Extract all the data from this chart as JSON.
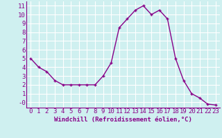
{
  "x": [
    0,
    1,
    2,
    3,
    4,
    5,
    6,
    7,
    8,
    9,
    10,
    11,
    12,
    13,
    14,
    15,
    16,
    17,
    18,
    19,
    20,
    21,
    22,
    23
  ],
  "y": [
    5,
    4,
    3.5,
    2.5,
    2,
    2,
    2,
    2,
    2,
    3,
    4.5,
    8.5,
    9.5,
    10.5,
    11,
    10,
    10.5,
    9.5,
    5,
    2.5,
    1,
    0.5,
    -0.2,
    -0.3
  ],
  "line_color": "#880088",
  "marker": "+",
  "marker_color": "#880088",
  "bg_color": "#cff0f0",
  "grid_color": "#aadddd",
  "xlabel": "Windchill (Refroidissement éolien,°C)",
  "ylim": [
    -0.6,
    11.5
  ],
  "xlim": [
    -0.5,
    23.5
  ],
  "xticks": [
    0,
    1,
    2,
    3,
    4,
    5,
    6,
    7,
    8,
    9,
    10,
    11,
    12,
    13,
    14,
    15,
    16,
    17,
    18,
    19,
    20,
    21,
    22,
    23
  ],
  "yticks": [
    0,
    1,
    2,
    3,
    4,
    5,
    6,
    7,
    8,
    9,
    10,
    11
  ],
  "xlabel_fontsize": 6.5,
  "tick_fontsize": 6.5,
  "line_width": 1.0
}
